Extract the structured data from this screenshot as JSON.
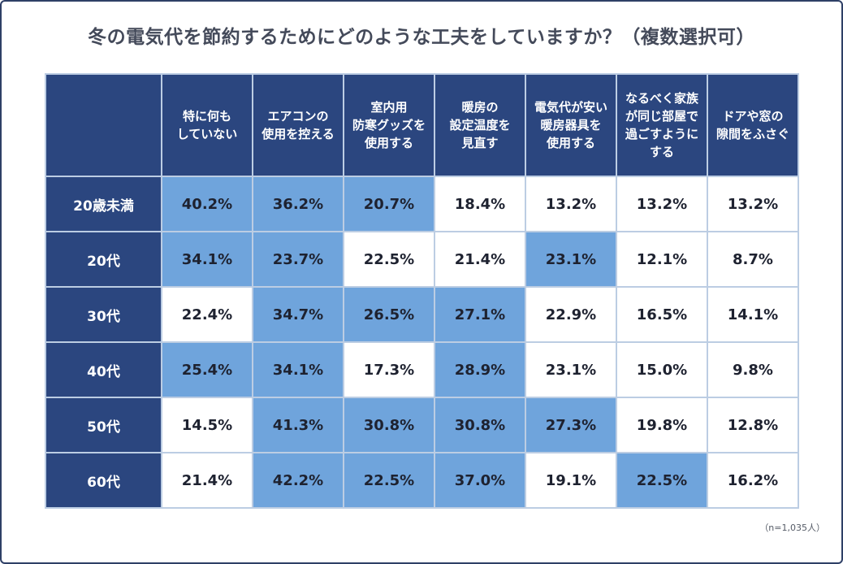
{
  "chart_data": {
    "type": "table",
    "title": "冬の電気代を節約するためにどのような工夫をしていますか？（複数選択可）",
    "columns": [
      "特に何も\nしていない",
      "エアコンの\n使用を控える",
      "室内用\n防寒グッズを\n使用する",
      "暖房の\n設定温度を\n見直す",
      "電気代が安い\n暖房器具を\n使用する",
      "なるべく家族\nが同じ部屋で\n過ごすように\nする",
      "ドアや窓の\n隙間をふさぐ"
    ],
    "rows": [
      {
        "label": "20歳未満",
        "values": [
          "40.2%",
          "36.2%",
          "20.7%",
          "18.4%",
          "13.2%",
          "13.2%",
          "13.2%"
        ],
        "highlight": [
          true,
          true,
          true,
          false,
          false,
          false,
          false
        ]
      },
      {
        "label": "20代",
        "values": [
          "34.1%",
          "23.7%",
          "22.5%",
          "21.4%",
          "23.1%",
          "12.1%",
          "8.7%"
        ],
        "highlight": [
          true,
          true,
          false,
          false,
          true,
          false,
          false
        ]
      },
      {
        "label": "30代",
        "values": [
          "22.4%",
          "34.7%",
          "26.5%",
          "27.1%",
          "22.9%",
          "16.5%",
          "14.1%"
        ],
        "highlight": [
          false,
          true,
          true,
          true,
          false,
          false,
          false
        ]
      },
      {
        "label": "40代",
        "values": [
          "25.4%",
          "34.1%",
          "17.3%",
          "28.9%",
          "23.1%",
          "15.0%",
          "9.8%"
        ],
        "highlight": [
          true,
          true,
          false,
          true,
          false,
          false,
          false
        ]
      },
      {
        "label": "50代",
        "values": [
          "14.5%",
          "41.3%",
          "30.8%",
          "30.8%",
          "27.3%",
          "19.8%",
          "12.8%"
        ],
        "highlight": [
          false,
          true,
          true,
          true,
          true,
          false,
          false
        ]
      },
      {
        "label": "60代",
        "values": [
          "21.4%",
          "42.2%",
          "22.5%",
          "37.0%",
          "19.1%",
          "22.5%",
          "16.2%"
        ],
        "highlight": [
          false,
          true,
          true,
          true,
          false,
          true,
          false
        ]
      }
    ],
    "note": "（n=1,035人）",
    "colors": {
      "header": "#2b467f",
      "highlight": "#6fa4dc",
      "plain": "#ffffff",
      "grid": "#bccde3"
    }
  }
}
